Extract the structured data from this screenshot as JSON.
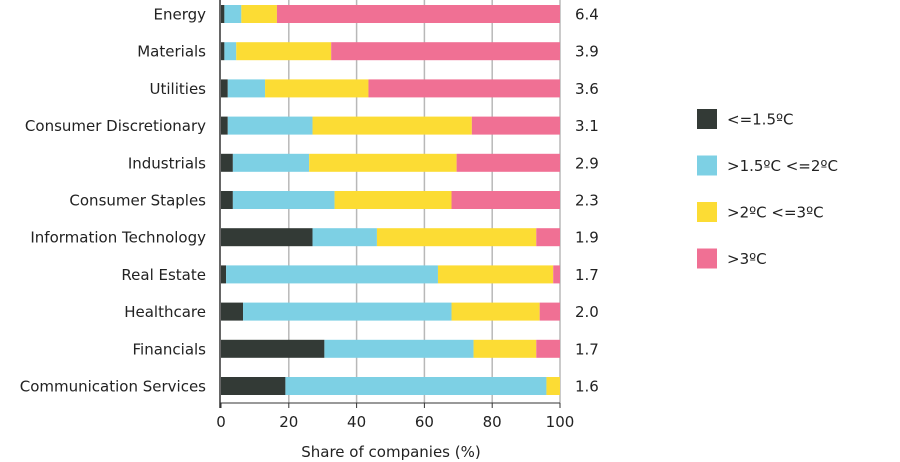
{
  "chart_data": {
    "type": "bar",
    "orientation": "horizontal",
    "stacked": true,
    "categories": [
      "Energy",
      "Materials",
      "Utilities",
      "Consumer Discretionary",
      "Industrials",
      "Consumer Staples",
      "Information Technology",
      "Real Estate",
      "Healthcare",
      "Financials",
      "Communication Services"
    ],
    "series": [
      {
        "name": "<=1.5ºC",
        "color": "#333a36",
        "values": [
          1,
          1,
          2,
          2,
          3.5,
          3.5,
          27,
          1.5,
          6.5,
          30.5,
          19
        ]
      },
      {
        "name": ">1.5ºC <=2ºC",
        "color": "#7dd0e4",
        "values": [
          5,
          3.5,
          11,
          25,
          22.5,
          30,
          19,
          62.5,
          61.5,
          44,
          77
        ]
      },
      {
        "name": ">2ºC <=3ºC",
        "color": "#fcdc34",
        "values": [
          10.5,
          28,
          30.5,
          47,
          43.5,
          34.5,
          47,
          34,
          26,
          18.5,
          4
        ]
      },
      {
        "name": ">3ºC",
        "color": "#f07094",
        "values": [
          83.5,
          67.5,
          56.5,
          26,
          30.5,
          32,
          7,
          2,
          6,
          7,
          0
        ]
      }
    ],
    "right_labels": [
      "6.4",
      "3.9",
      "3.6",
      "3.1",
      "2.9",
      "2.3",
      "1.9",
      "1.7",
      "2.0",
      "1.7",
      "1.6"
    ],
    "xlabel": "Share of companies (%)",
    "ylabel": "",
    "xlim": [
      0,
      100
    ],
    "xticks": [
      "0",
      "20",
      "40",
      "60",
      "80",
      "100"
    ],
    "grid": true,
    "legend_position": "right"
  }
}
